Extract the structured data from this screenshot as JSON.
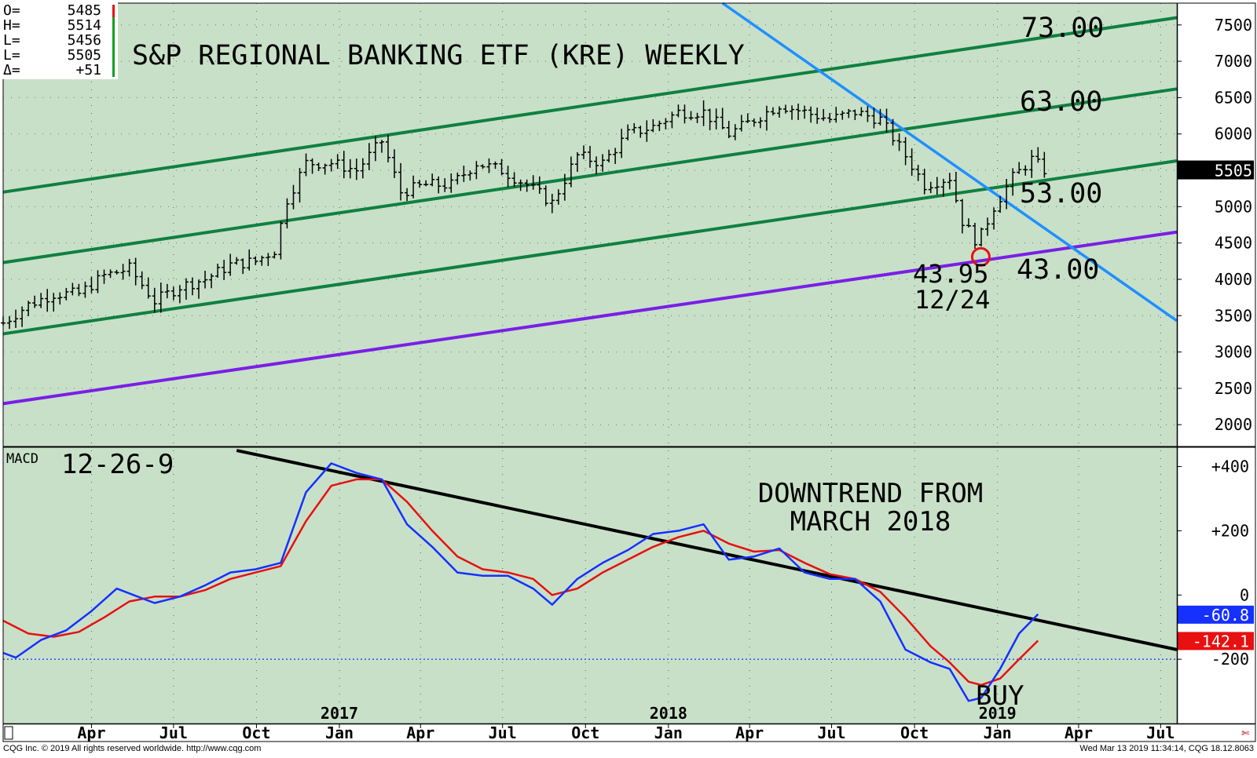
{
  "ohlc_box": {
    "rows": [
      {
        "label": "O=",
        "value": "5485"
      },
      {
        "label": "H=",
        "value": "5514"
      },
      {
        "label": "L=",
        "value": "5456"
      },
      {
        "label": "L=",
        "value": "5505"
      },
      {
        "label": "Δ=",
        "value": "+51"
      }
    ]
  },
  "footer": {
    "copyright": "CQG Inc. © 2019 All rights reserved worldwide. http://www.cqg.com",
    "timestamp": "Wed Mar 13 2019 11:34:14, CQG 18.12.8063"
  },
  "chart_data": [
    {
      "type": "line",
      "title": "S&P REGIONAL BANKING ETF (KRE) WEEKLY",
      "y_axis_side": "right",
      "ylim": [
        1700,
        7800
      ],
      "y_ticks": [
        "7500",
        "7000",
        "6500",
        "6000",
        "5500",
        "5000",
        "4500",
        "4000",
        "3500",
        "3000",
        "2500",
        "2000"
      ],
      "last_price_label": "5505",
      "last_price": 5505,
      "channel_lines": [
        {
          "label": "73.00",
          "color": "#108040",
          "start": {
            "date": "2016-01-08",
            "price": 5200
          },
          "end": {
            "date": "2019-08-02",
            "price": 7600
          }
        },
        {
          "label": "63.00",
          "color": "#108040",
          "start": {
            "date": "2016-01-08",
            "price": 4230
          },
          "end": {
            "date": "2019-08-02",
            "price": 6620
          }
        },
        {
          "label": "53.00",
          "color": "#108040",
          "start": {
            "date": "2016-01-08",
            "price": 3250
          },
          "end": {
            "date": "2019-08-02",
            "price": 5630
          }
        },
        {
          "label": "43.00",
          "color": "#7a1fe6",
          "start": {
            "date": "2016-01-08",
            "price": 2290
          },
          "end": {
            "date": "2019-08-02",
            "price": 4650
          }
        }
      ],
      "downtrend_line": {
        "color": "#1e90ff",
        "start": {
          "date": "2018-03-16",
          "price": 7800
        },
        "end": {
          "date": "2019-08-02",
          "price": 3430
        }
      },
      "annotation": {
        "price_label": "43.95",
        "date_label": "12/24",
        "marker_date": "2018-12-24",
        "marker_price": 4395
      },
      "weekly_close": [
        {
          "date": "2016-01-08",
          "close": 3400
        },
        {
          "date": "2016-02-05",
          "close": 3650
        },
        {
          "date": "2016-03-04",
          "close": 3800
        },
        {
          "date": "2016-04-01",
          "close": 3800
        },
        {
          "date": "2016-04-29",
          "close": 4050
        },
        {
          "date": "2016-05-27",
          "close": 4150
        },
        {
          "date": "2016-06-24",
          "close": 3700
        },
        {
          "date": "2016-07-22",
          "close": 3900
        },
        {
          "date": "2016-08-19",
          "close": 4000
        },
        {
          "date": "2016-09-16",
          "close": 4200
        },
        {
          "date": "2016-10-14",
          "close": 4250
        },
        {
          "date": "2016-11-04",
          "close": 4400
        },
        {
          "date": "2016-11-18",
          "close": 5100
        },
        {
          "date": "2016-12-09",
          "close": 5600
        },
        {
          "date": "2017-01-06",
          "close": 5600
        },
        {
          "date": "2017-02-03",
          "close": 5500
        },
        {
          "date": "2017-03-03",
          "close": 5900
        },
        {
          "date": "2017-03-24",
          "close": 5200
        },
        {
          "date": "2017-04-21",
          "close": 5300
        },
        {
          "date": "2017-05-19",
          "close": 5300
        },
        {
          "date": "2017-06-16",
          "close": 5600
        },
        {
          "date": "2017-07-14",
          "close": 5500
        },
        {
          "date": "2017-08-11",
          "close": 5300
        },
        {
          "date": "2017-09-08",
          "close": 5050
        },
        {
          "date": "2017-10-06",
          "close": 5700
        },
        {
          "date": "2017-11-03",
          "close": 5600
        },
        {
          "date": "2017-12-01",
          "close": 6000
        },
        {
          "date": "2017-12-29",
          "close": 6100
        },
        {
          "date": "2018-01-26",
          "close": 6300
        },
        {
          "date": "2018-02-23",
          "close": 6300
        },
        {
          "date": "2018-03-23",
          "close": 6000
        },
        {
          "date": "2018-04-20",
          "close": 6200
        },
        {
          "date": "2018-05-18",
          "close": 6400
        },
        {
          "date": "2018-06-15",
          "close": 6300
        },
        {
          "date": "2018-07-13",
          "close": 6200
        },
        {
          "date": "2018-08-10",
          "close": 6300
        },
        {
          "date": "2018-09-07",
          "close": 6200
        },
        {
          "date": "2018-10-05",
          "close": 5700
        },
        {
          "date": "2018-10-26",
          "close": 5300
        },
        {
          "date": "2018-11-23",
          "close": 5400
        },
        {
          "date": "2018-12-07",
          "close": 4800
        },
        {
          "date": "2018-12-24",
          "close": 4500
        },
        {
          "date": "2019-01-11",
          "close": 5000
        },
        {
          "date": "2019-02-01",
          "close": 5400
        },
        {
          "date": "2019-02-22",
          "close": 5650
        },
        {
          "date": "2019-03-08",
          "close": 5505
        }
      ]
    },
    {
      "type": "line",
      "title": "MACD",
      "subtitle": "12-26-9",
      "y_axis_side": "right",
      "ylim": [
        -400,
        460
      ],
      "y_ticks": [
        "+400",
        "+200",
        "0",
        "-200"
      ],
      "zero_line_value": -200,
      "trendline": {
        "color": "#000000",
        "start": {
          "date": "2016-09-23",
          "value": 450
        },
        "end": {
          "date": "2019-08-02",
          "value": -170
        }
      },
      "annotation_lines": [
        "DOWNTREND FROM",
        "MARCH 2018"
      ],
      "signal_label": "BUY",
      "series": [
        {
          "name": "",
          "color": "#1530ff",
          "last_label": "-60.8",
          "points": [
            {
              "date": "2016-01-08",
              "value": -180
            },
            {
              "date": "2016-01-22",
              "value": -195
            },
            {
              "date": "2016-02-19",
              "value": -140
            },
            {
              "date": "2016-03-18",
              "value": -110
            },
            {
              "date": "2016-04-15",
              "value": -50
            },
            {
              "date": "2016-05-13",
              "value": 20
            },
            {
              "date": "2016-06-10",
              "value": -10
            },
            {
              "date": "2016-06-24",
              "value": -25
            },
            {
              "date": "2016-07-22",
              "value": -5
            },
            {
              "date": "2016-08-19",
              "value": 30
            },
            {
              "date": "2016-09-16",
              "value": 70
            },
            {
              "date": "2016-10-14",
              "value": 80
            },
            {
              "date": "2016-11-11",
              "value": 100
            },
            {
              "date": "2016-12-09",
              "value": 320
            },
            {
              "date": "2017-01-06",
              "value": 410
            },
            {
              "date": "2017-02-03",
              "value": 380
            },
            {
              "date": "2017-03-03",
              "value": 360
            },
            {
              "date": "2017-03-31",
              "value": 220
            },
            {
              "date": "2017-04-28",
              "value": 150
            },
            {
              "date": "2017-05-26",
              "value": 70
            },
            {
              "date": "2017-06-23",
              "value": 60
            },
            {
              "date": "2017-07-21",
              "value": 60
            },
            {
              "date": "2017-08-18",
              "value": 20
            },
            {
              "date": "2017-09-08",
              "value": -30
            },
            {
              "date": "2017-10-06",
              "value": 50
            },
            {
              "date": "2017-11-03",
              "value": 100
            },
            {
              "date": "2017-12-01",
              "value": 140
            },
            {
              "date": "2017-12-29",
              "value": 190
            },
            {
              "date": "2018-01-26",
              "value": 200
            },
            {
              "date": "2018-02-23",
              "value": 220
            },
            {
              "date": "2018-03-23",
              "value": 110
            },
            {
              "date": "2018-04-20",
              "value": 120
            },
            {
              "date": "2018-05-18",
              "value": 145
            },
            {
              "date": "2018-06-15",
              "value": 70
            },
            {
              "date": "2018-07-13",
              "value": 50
            },
            {
              "date": "2018-08-10",
              "value": 50
            },
            {
              "date": "2018-09-07",
              "value": -20
            },
            {
              "date": "2018-10-05",
              "value": -170
            },
            {
              "date": "2018-11-02",
              "value": -210
            },
            {
              "date": "2018-11-23",
              "value": -230
            },
            {
              "date": "2018-12-14",
              "value": -330
            },
            {
              "date": "2018-12-28",
              "value": -320
            },
            {
              "date": "2019-01-18",
              "value": -230
            },
            {
              "date": "2019-02-08",
              "value": -120
            },
            {
              "date": "2019-03-01",
              "value": -60
            }
          ]
        },
        {
          "name": "",
          "color": "#e81010",
          "last_label": "-142.1",
          "points": [
            {
              "date": "2016-01-08",
              "value": -80
            },
            {
              "date": "2016-02-05",
              "value": -120
            },
            {
              "date": "2016-03-04",
              "value": -130
            },
            {
              "date": "2016-04-01",
              "value": -115
            },
            {
              "date": "2016-04-29",
              "value": -70
            },
            {
              "date": "2016-05-27",
              "value": -20
            },
            {
              "date": "2016-06-24",
              "value": -5
            },
            {
              "date": "2016-07-22",
              "value": -5
            },
            {
              "date": "2016-08-19",
              "value": 15
            },
            {
              "date": "2016-09-16",
              "value": 50
            },
            {
              "date": "2016-10-14",
              "value": 70
            },
            {
              "date": "2016-11-11",
              "value": 90
            },
            {
              "date": "2016-12-09",
              "value": 230
            },
            {
              "date": "2017-01-06",
              "value": 340
            },
            {
              "date": "2017-02-03",
              "value": 360
            },
            {
              "date": "2017-03-03",
              "value": 360
            },
            {
              "date": "2017-03-31",
              "value": 290
            },
            {
              "date": "2017-04-28",
              "value": 200
            },
            {
              "date": "2017-05-26",
              "value": 120
            },
            {
              "date": "2017-06-23",
              "value": 80
            },
            {
              "date": "2017-07-21",
              "value": 70
            },
            {
              "date": "2017-08-18",
              "value": 50
            },
            {
              "date": "2017-09-08",
              "value": 0
            },
            {
              "date": "2017-10-06",
              "value": 20
            },
            {
              "date": "2017-11-03",
              "value": 70
            },
            {
              "date": "2017-12-01",
              "value": 110
            },
            {
              "date": "2017-12-29",
              "value": 150
            },
            {
              "date": "2018-01-26",
              "value": 180
            },
            {
              "date": "2018-02-23",
              "value": 200
            },
            {
              "date": "2018-03-23",
              "value": 160
            },
            {
              "date": "2018-04-20",
              "value": 135
            },
            {
              "date": "2018-05-18",
              "value": 140
            },
            {
              "date": "2018-06-15",
              "value": 100
            },
            {
              "date": "2018-07-13",
              "value": 65
            },
            {
              "date": "2018-08-10",
              "value": 50
            },
            {
              "date": "2018-09-07",
              "value": 10
            },
            {
              "date": "2018-10-05",
              "value": -70
            },
            {
              "date": "2018-11-02",
              "value": -160
            },
            {
              "date": "2018-11-23",
              "value": -210
            },
            {
              "date": "2018-12-14",
              "value": -270
            },
            {
              "date": "2018-12-28",
              "value": -280
            },
            {
              "date": "2019-01-18",
              "value": -260
            },
            {
              "date": "2019-02-08",
              "value": -200
            },
            {
              "date": "2019-03-01",
              "value": -142
            }
          ]
        }
      ]
    }
  ],
  "x_axis": {
    "month_labels": [
      {
        "label": "Apr",
        "date": "2016-04-15"
      },
      {
        "label": "Jul",
        "date": "2016-07-15"
      },
      {
        "label": "Oct",
        "date": "2016-10-15"
      },
      {
        "label": "Jan",
        "date": "2017-01-15"
      },
      {
        "label": "Apr",
        "date": "2017-04-15"
      },
      {
        "label": "Jul",
        "date": "2017-07-15"
      },
      {
        "label": "Oct",
        "date": "2017-10-15"
      },
      {
        "label": "Jan",
        "date": "2018-01-15"
      },
      {
        "label": "Apr",
        "date": "2018-04-15"
      },
      {
        "label": "Jul",
        "date": "2018-07-15"
      },
      {
        "label": "Oct",
        "date": "2018-10-15"
      },
      {
        "label": "Jan",
        "date": "2019-01-15"
      },
      {
        "label": "Apr",
        "date": "2019-04-15"
      },
      {
        "label": "Jul",
        "date": "2019-07-15"
      }
    ],
    "year_labels": [
      {
        "label": "2017",
        "date": "2017-01-15"
      },
      {
        "label": "2018",
        "date": "2018-01-15"
      },
      {
        "label": "2019",
        "date": "2019-01-15"
      }
    ]
  },
  "colors": {
    "plot_bg": "#c8e0c8",
    "channel": "#108040",
    "support": "#7a1fe6",
    "downtrend": "#1e90ff",
    "macd": "#1530ff",
    "signal": "#e81010",
    "marker": "#e81010"
  }
}
